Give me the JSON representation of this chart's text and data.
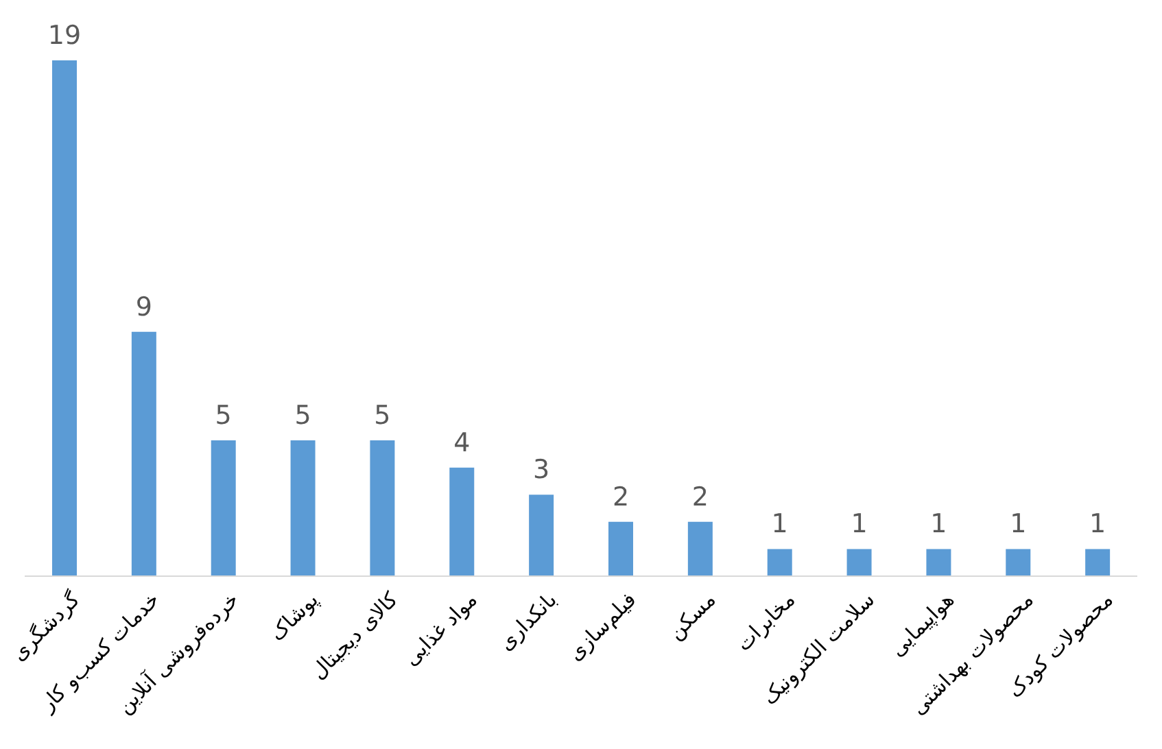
{
  "chart_data": {
    "type": "bar",
    "categories": [
      "گردشگری",
      "خدمات کسب‌و کار",
      "خرده‌فروشی آنلاین",
      "پوشاک",
      "کالای دیجیتال",
      "مواد غذایی",
      "بانکداری",
      "فیلم‌سازی",
      "مسکن",
      "مخابرات",
      "سلامت الکترونیک",
      "هواپیمایی",
      "محصولات بهداشتی",
      "محصولات کودک"
    ],
    "values": [
      19,
      9,
      5,
      5,
      5,
      4,
      3,
      2,
      2,
      1,
      1,
      1,
      1,
      1
    ],
    "color": "#5b9bd5",
    "data_labels": true,
    "grid": false
  }
}
